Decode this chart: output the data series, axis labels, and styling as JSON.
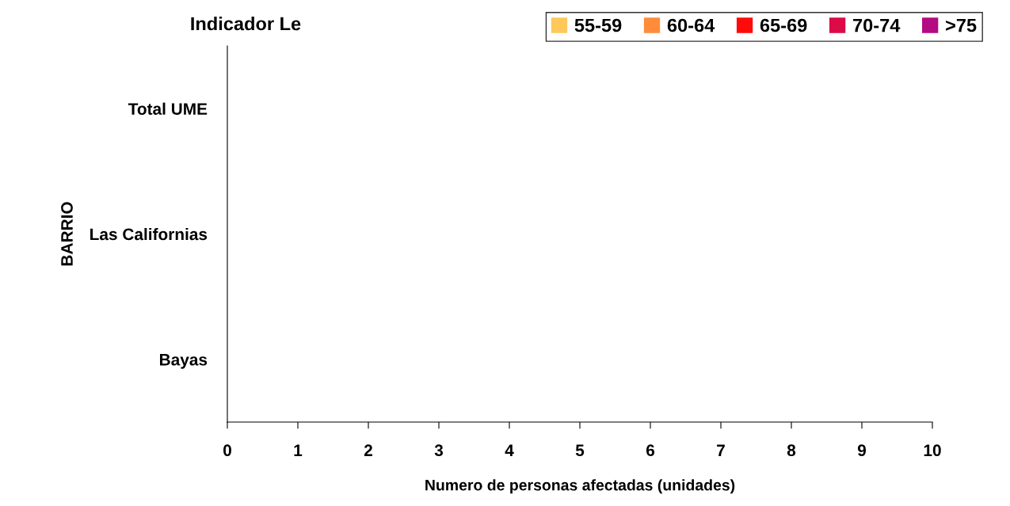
{
  "chart_data": {
    "type": "bar",
    "orientation": "horizontal",
    "title": "Indicador Le",
    "xlabel": "Numero de personas afectadas (unidades)",
    "ylabel": "BARRIO",
    "categories": [
      "Total UME",
      "Las Californias",
      "Bayas"
    ],
    "series": [
      {
        "name": "55-59",
        "color": "#ffc85a",
        "values": [
          0,
          0,
          0
        ]
      },
      {
        "name": "60-64",
        "color": "#ff8c3a",
        "values": [
          0,
          0,
          0
        ]
      },
      {
        "name": "65-69",
        "color": "#ff0a0a",
        "values": [
          0,
          0,
          0
        ]
      },
      {
        "name": "70-74",
        "color": "#dc0a46",
        "values": [
          0,
          0,
          0
        ]
      },
      {
        "name": ">75",
        "color": "#b40a82",
        "values": [
          0,
          0,
          0
        ]
      }
    ],
    "xlim": [
      0,
      10
    ],
    "xticks": [
      0,
      1,
      2,
      3,
      4,
      5,
      6,
      7,
      8,
      9,
      10
    ],
    "grid": false,
    "legend": "top right"
  }
}
